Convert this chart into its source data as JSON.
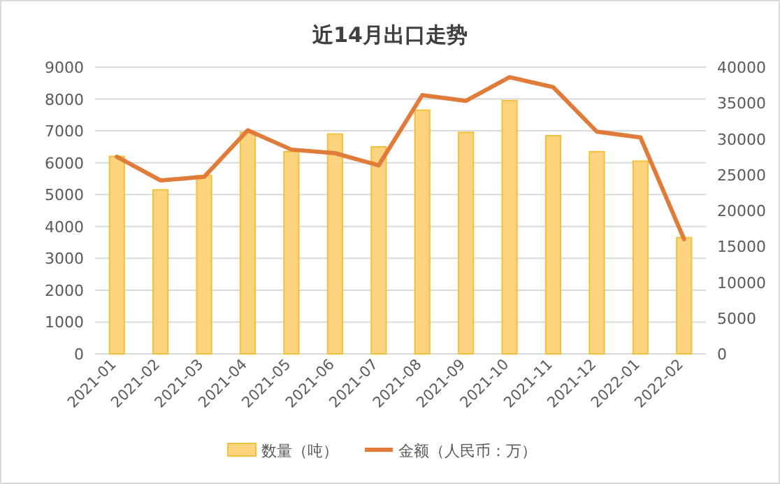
{
  "chart_data": {
    "type": "bar",
    "title": "近14月出口走势",
    "categories": [
      "2021-01",
      "2021-02",
      "2021-03",
      "2021-04",
      "2021-05",
      "2021-06",
      "2021-07",
      "2021-08",
      "2021-09",
      "2021-10",
      "2021-11",
      "2021-12",
      "2022-01",
      "2022-02"
    ],
    "series": [
      {
        "name": "数量（吨）",
        "color": "#fcd47f",
        "values": [
          6200,
          5150,
          5600,
          6950,
          6350,
          6900,
          6500,
          7650,
          6950,
          7950,
          6850,
          6350,
          6050,
          3650
        ]
      },
      {
        "name": "金额（人民币：万）",
        "type": "line",
        "axis": "y2",
        "color": "#e07b39",
        "values": [
          27500,
          24200,
          24700,
          31200,
          28500,
          28000,
          26300,
          36100,
          35300,
          38600,
          37200,
          31000,
          30200,
          16000
        ]
      }
    ],
    "ylim": [
      0,
      9000
    ],
    "yticks": [
      0,
      1000,
      2000,
      3000,
      4000,
      5000,
      6000,
      7000,
      8000,
      9000
    ],
    "y2lim": [
      0,
      40000
    ],
    "y2ticks": [
      0,
      5000,
      10000,
      15000,
      20000,
      25000,
      30000,
      35000,
      40000
    ],
    "grid": "y",
    "legend": "bottom"
  }
}
